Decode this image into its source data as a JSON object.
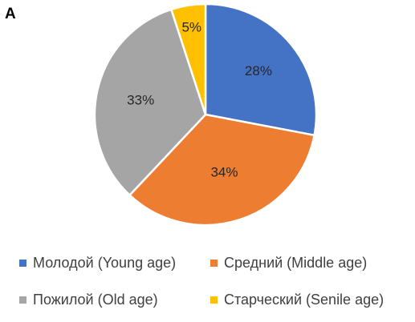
{
  "panel_label": "A",
  "chart_data": {
    "type": "pie",
    "title": "",
    "labels": [
      "Молодой (Young age)",
      "Средний (Middle age)",
      "Пожилой (Old age)",
      "Старческий (Senile age)"
    ],
    "values": [
      28,
      34,
      33,
      5
    ],
    "value_labels": [
      "28%",
      "34%",
      "33%",
      "5%"
    ],
    "colors": [
      "#4472C4",
      "#ED7D31",
      "#A5A5A5",
      "#FFC000"
    ],
    "legend": "bottom",
    "start": "12 o'clock",
    "direction": "clockwise"
  }
}
